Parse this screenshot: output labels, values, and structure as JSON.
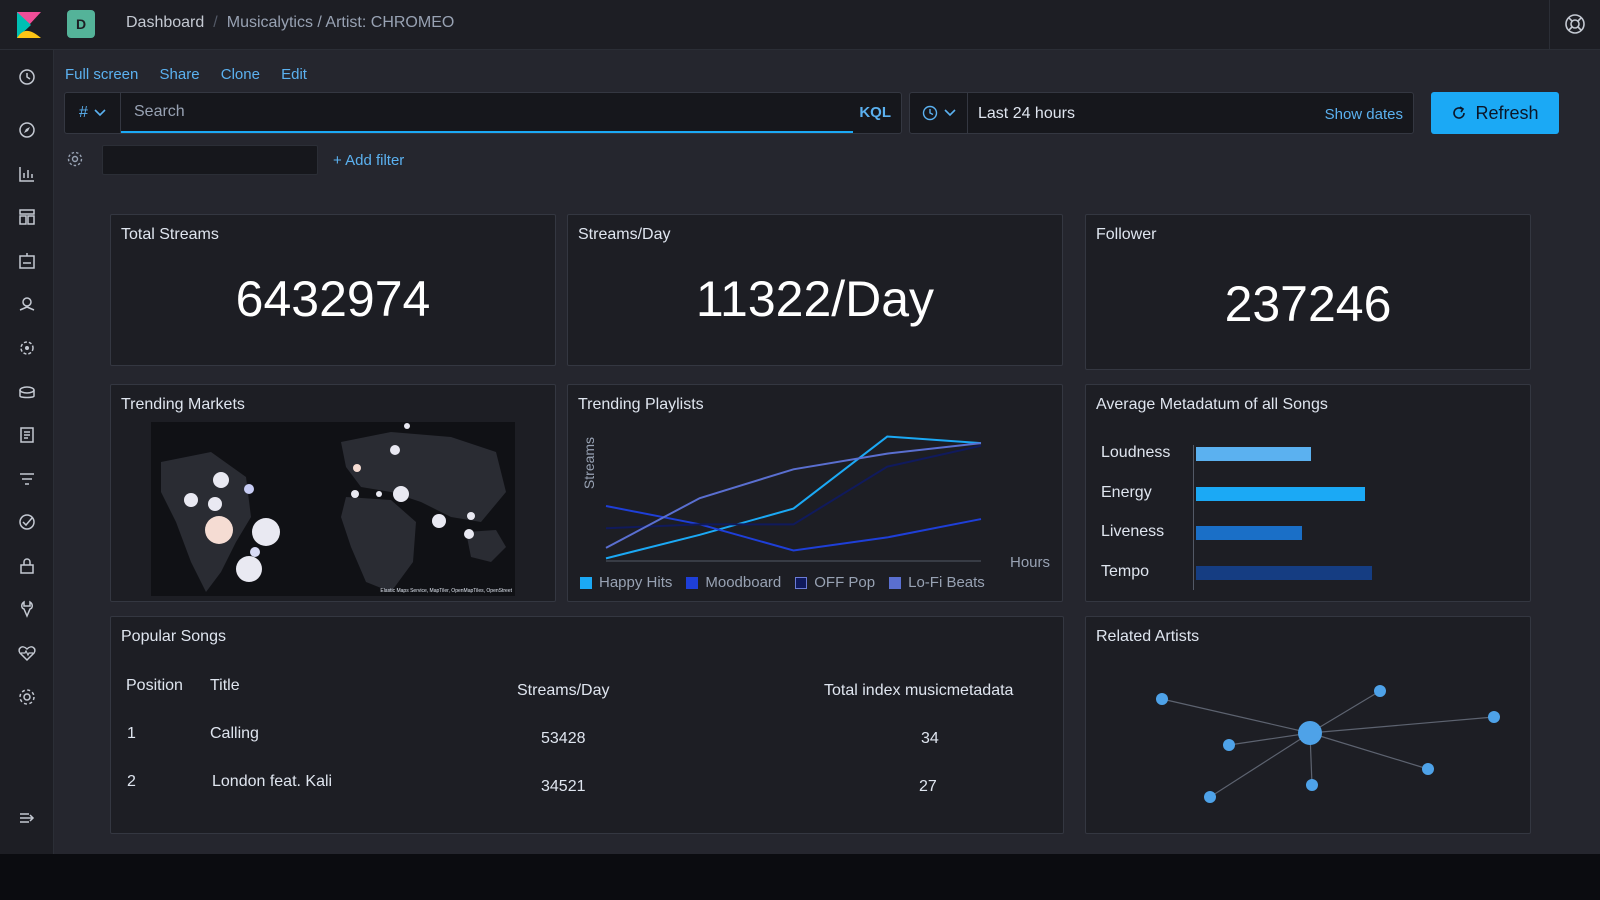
{
  "header": {
    "space_initial": "D",
    "breadcrumbs": [
      "Dashboard",
      "Musicalytics / Artist: CHROMEO"
    ]
  },
  "toolbar": {
    "links": [
      "Full screen",
      "Share",
      "Clone",
      "Edit"
    ]
  },
  "query": {
    "language_symbol": "#",
    "placeholder": "Search",
    "language": "KQL"
  },
  "time": {
    "range": "Last 24 hours",
    "show_dates": "Show dates",
    "refresh": "Refresh"
  },
  "filters": {
    "add_filter": "+ Add filter"
  },
  "panels": {
    "total_streams": {
      "title": "Total Streams",
      "value": "6432974"
    },
    "streams_day": {
      "title": "Streams/Day",
      "value": "11322/Day"
    },
    "follower": {
      "title": "Follower",
      "value": "237246"
    },
    "trending_markets": {
      "title": "Trending Markets",
      "attribution": "Elastic Maps Service, MapTiler, OpenMapTiles, OpenStreet"
    },
    "trending_playlists": {
      "title": "Trending Playlists"
    },
    "avg_metadata": {
      "title": "Average Metadatum of all Songs"
    },
    "popular_songs": {
      "title": "Popular Songs",
      "columns": [
        "Position",
        "Title",
        "Streams/Day",
        "Total index musicmetadata"
      ],
      "rows": [
        [
          "1",
          "Calling",
          "53428",
          "34"
        ],
        [
          "2",
          "London feat. Kali",
          "34521",
          "27"
        ]
      ]
    },
    "related_artists": {
      "title": "Related Artists"
    }
  },
  "chart_data": [
    {
      "type": "line",
      "title": "Trending Playlists",
      "xlabel": "Hours",
      "ylabel": "Streams",
      "x": [
        0,
        1,
        2,
        3,
        4
      ],
      "series": [
        {
          "name": "Happy Hits",
          "color": "#1ba9f5",
          "values": [
            2,
            20,
            40,
            95,
            90
          ]
        },
        {
          "name": "Moodboard",
          "color": "#1e3fd8",
          "values": [
            42,
            28,
            8,
            18,
            32
          ]
        },
        {
          "name": "OFF Pop",
          "color": "#101a5c",
          "values": [
            25,
            28,
            28,
            72,
            88
          ]
        },
        {
          "name": "Lo-Fi Beats",
          "color": "#5a6fd0",
          "values": [
            10,
            48,
            70,
            82,
            90
          ]
        }
      ],
      "grid": false,
      "legend_position": "bottom"
    },
    {
      "type": "bar",
      "orientation": "horizontal",
      "title": "Average Metadatum of all Songs",
      "categories": [
        "Loudness",
        "Energy",
        "Liveness",
        "Tempo"
      ],
      "values": [
        0.51,
        0.75,
        0.47,
        0.78
      ],
      "colors": [
        "#5bb1f0",
        "#1ba9f5",
        "#1a6fc7",
        "#153d82"
      ]
    }
  ],
  "colors": {
    "accent": "#1ba9f5",
    "panel_bg": "#1d1e24",
    "page_bg": "#25262e"
  }
}
